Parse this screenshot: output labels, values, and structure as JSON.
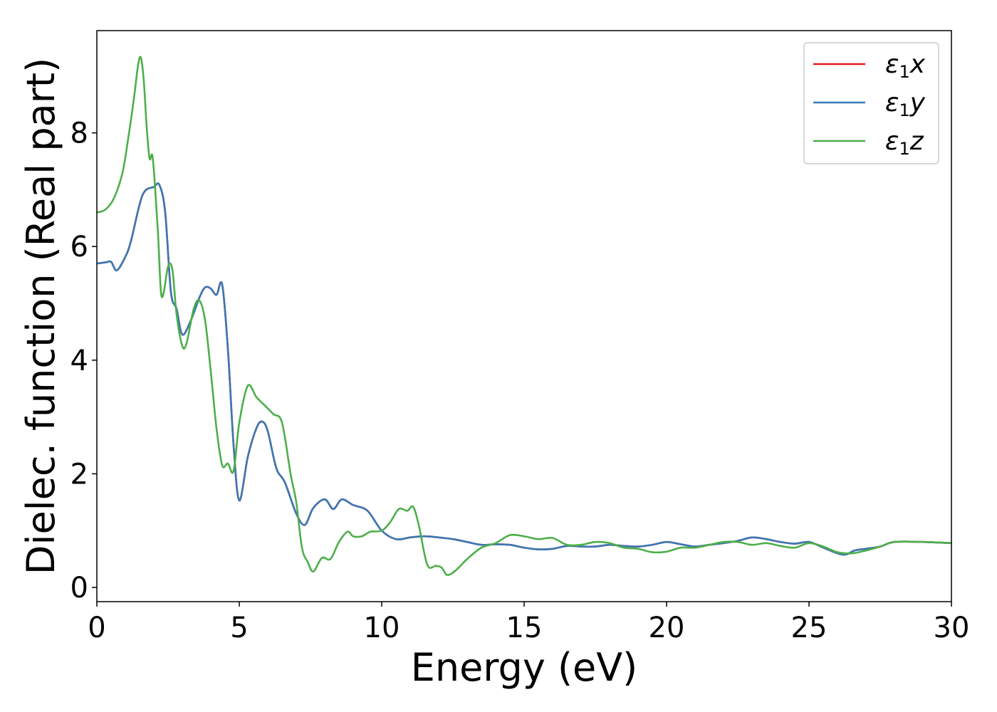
{
  "chart_data": {
    "type": "line",
    "xlabel": "Energy (eV)",
    "ylabel": "Dielec. function (Real part)",
    "xlim": [
      0,
      30
    ],
    "ylim": [
      -0.25,
      9.8
    ],
    "xticks": [
      0,
      5,
      10,
      15,
      20,
      25,
      30
    ],
    "yticks": [
      0,
      2,
      4,
      6,
      8
    ],
    "grid": false,
    "legend_placement": "top-right",
    "series": [
      {
        "name": "ε1x",
        "legend": {
          "main": "ε",
          "sub": "1",
          "axis": "x"
        },
        "color": "#e41a1c",
        "x": [
          0,
          0.3,
          0.5,
          0.7,
          1.0,
          1.2,
          1.6,
          2.0,
          2.2,
          2.4,
          2.6,
          2.8,
          3.0,
          3.3,
          3.6,
          3.8,
          4.0,
          4.2,
          4.4,
          4.6,
          4.8,
          5.0,
          5.3,
          5.6,
          5.8,
          6.0,
          6.3,
          6.6,
          7.0,
          7.3,
          7.6,
          8.0,
          8.3,
          8.6,
          9.0,
          9.5,
          10.0,
          10.5,
          11.0,
          11.5,
          12.0,
          12.5,
          13.0,
          13.5,
          14.0,
          14.5,
          15.0,
          15.5,
          16.0,
          16.5,
          17.0,
          17.5,
          18.0,
          18.5,
          19.0,
          19.5,
          20.0,
          20.5,
          21.0,
          21.5,
          22.0,
          22.5,
          23.0,
          23.5,
          24.0,
          24.5,
          25.0,
          25.5,
          26.0,
          26.3,
          26.6,
          27.0,
          27.5,
          28.0,
          29.0,
          30.0
        ],
        "y": [
          5.7,
          5.72,
          5.73,
          5.58,
          5.82,
          6.1,
          6.9,
          7.05,
          7.08,
          6.6,
          5.2,
          4.9,
          4.45,
          4.7,
          5.1,
          5.28,
          5.26,
          5.15,
          5.33,
          4.2,
          2.5,
          1.53,
          2.3,
          2.8,
          2.92,
          2.75,
          2.1,
          1.85,
          1.3,
          1.1,
          1.4,
          1.55,
          1.38,
          1.55,
          1.45,
          1.35,
          1.0,
          0.85,
          0.88,
          0.9,
          0.88,
          0.85,
          0.8,
          0.75,
          0.76,
          0.75,
          0.7,
          0.67,
          0.68,
          0.73,
          0.72,
          0.72,
          0.75,
          0.73,
          0.72,
          0.75,
          0.8,
          0.76,
          0.72,
          0.75,
          0.78,
          0.82,
          0.88,
          0.85,
          0.8,
          0.77,
          0.8,
          0.7,
          0.6,
          0.58,
          0.65,
          0.68,
          0.72,
          0.8,
          0.8,
          0.78
        ]
      },
      {
        "name": "ε1y",
        "legend": {
          "main": "ε",
          "sub": "1",
          "axis": "y"
        },
        "color": "#3a78b5",
        "x": [
          0,
          0.3,
          0.5,
          0.7,
          1.0,
          1.2,
          1.6,
          2.0,
          2.2,
          2.4,
          2.6,
          2.8,
          3.0,
          3.3,
          3.6,
          3.8,
          4.0,
          4.2,
          4.4,
          4.6,
          4.8,
          5.0,
          5.3,
          5.6,
          5.8,
          6.0,
          6.3,
          6.6,
          7.0,
          7.3,
          7.6,
          8.0,
          8.3,
          8.6,
          9.0,
          9.5,
          10.0,
          10.5,
          11.0,
          11.5,
          12.0,
          12.5,
          13.0,
          13.5,
          14.0,
          14.5,
          15.0,
          15.5,
          16.0,
          16.5,
          17.0,
          17.5,
          18.0,
          18.5,
          19.0,
          19.5,
          20.0,
          20.5,
          21.0,
          21.5,
          22.0,
          22.5,
          23.0,
          23.5,
          24.0,
          24.5,
          25.0,
          25.5,
          26.0,
          26.3,
          26.6,
          27.0,
          27.5,
          28.0,
          29.0,
          30.0
        ],
        "y": [
          5.7,
          5.72,
          5.73,
          5.58,
          5.82,
          6.1,
          6.9,
          7.05,
          7.08,
          6.6,
          5.2,
          4.9,
          4.45,
          4.7,
          5.1,
          5.28,
          5.26,
          5.15,
          5.33,
          4.2,
          2.5,
          1.53,
          2.3,
          2.8,
          2.92,
          2.75,
          2.1,
          1.85,
          1.3,
          1.1,
          1.4,
          1.55,
          1.38,
          1.55,
          1.45,
          1.35,
          1.0,
          0.85,
          0.88,
          0.9,
          0.88,
          0.85,
          0.8,
          0.75,
          0.76,
          0.75,
          0.7,
          0.67,
          0.68,
          0.73,
          0.72,
          0.72,
          0.75,
          0.73,
          0.72,
          0.75,
          0.8,
          0.76,
          0.72,
          0.75,
          0.78,
          0.82,
          0.88,
          0.85,
          0.8,
          0.77,
          0.8,
          0.7,
          0.6,
          0.58,
          0.65,
          0.68,
          0.72,
          0.8,
          0.8,
          0.78
        ]
      },
      {
        "name": "ε1z",
        "legend": {
          "main": "ε",
          "sub": "1",
          "axis": "z"
        },
        "color": "#4daf4a",
        "x": [
          0,
          0.3,
          0.6,
          0.9,
          1.1,
          1.3,
          1.45,
          1.55,
          1.65,
          1.75,
          1.85,
          1.95,
          2.05,
          2.15,
          2.25,
          2.35,
          2.5,
          2.65,
          2.8,
          3.0,
          3.15,
          3.4,
          3.6,
          3.8,
          4.0,
          4.2,
          4.4,
          4.6,
          4.8,
          5.0,
          5.3,
          5.6,
          5.9,
          6.2,
          6.5,
          6.8,
          7.0,
          7.2,
          7.4,
          7.6,
          7.9,
          8.2,
          8.5,
          8.8,
          9.0,
          9.3,
          9.6,
          10.0,
          10.3,
          10.6,
          10.9,
          11.1,
          11.3,
          11.6,
          11.9,
          12.1,
          12.3,
          12.6,
          13.0,
          13.5,
          14.0,
          14.5,
          15.0,
          15.5,
          16.0,
          16.5,
          17.0,
          17.5,
          18.0,
          18.5,
          19.0,
          19.5,
          20.0,
          20.5,
          21.0,
          21.5,
          22.0,
          22.5,
          23.0,
          23.5,
          24.0,
          24.5,
          25.0,
          25.5,
          26.0,
          26.5,
          27.0,
          27.5,
          28.0,
          29.0,
          30.0
        ],
        "y": [
          6.6,
          6.65,
          6.85,
          7.3,
          7.9,
          8.6,
          9.2,
          9.32,
          8.9,
          8.1,
          7.55,
          7.6,
          7.0,
          6.2,
          5.2,
          5.2,
          5.65,
          5.6,
          4.8,
          4.25,
          4.3,
          4.9,
          5.05,
          4.7,
          3.8,
          2.8,
          2.15,
          2.18,
          2.05,
          2.9,
          3.55,
          3.35,
          3.2,
          3.05,
          2.9,
          2.0,
          1.5,
          0.7,
          0.45,
          0.28,
          0.52,
          0.5,
          0.8,
          0.98,
          0.9,
          0.9,
          0.98,
          1.0,
          1.15,
          1.38,
          1.35,
          1.42,
          1.1,
          0.4,
          0.38,
          0.35,
          0.22,
          0.3,
          0.5,
          0.7,
          0.78,
          0.92,
          0.9,
          0.85,
          0.87,
          0.75,
          0.75,
          0.8,
          0.78,
          0.7,
          0.68,
          0.62,
          0.63,
          0.7,
          0.7,
          0.75,
          0.8,
          0.8,
          0.75,
          0.78,
          0.73,
          0.7,
          0.78,
          0.72,
          0.62,
          0.6,
          0.65,
          0.72,
          0.8,
          0.8,
          0.78
        ]
      }
    ]
  }
}
